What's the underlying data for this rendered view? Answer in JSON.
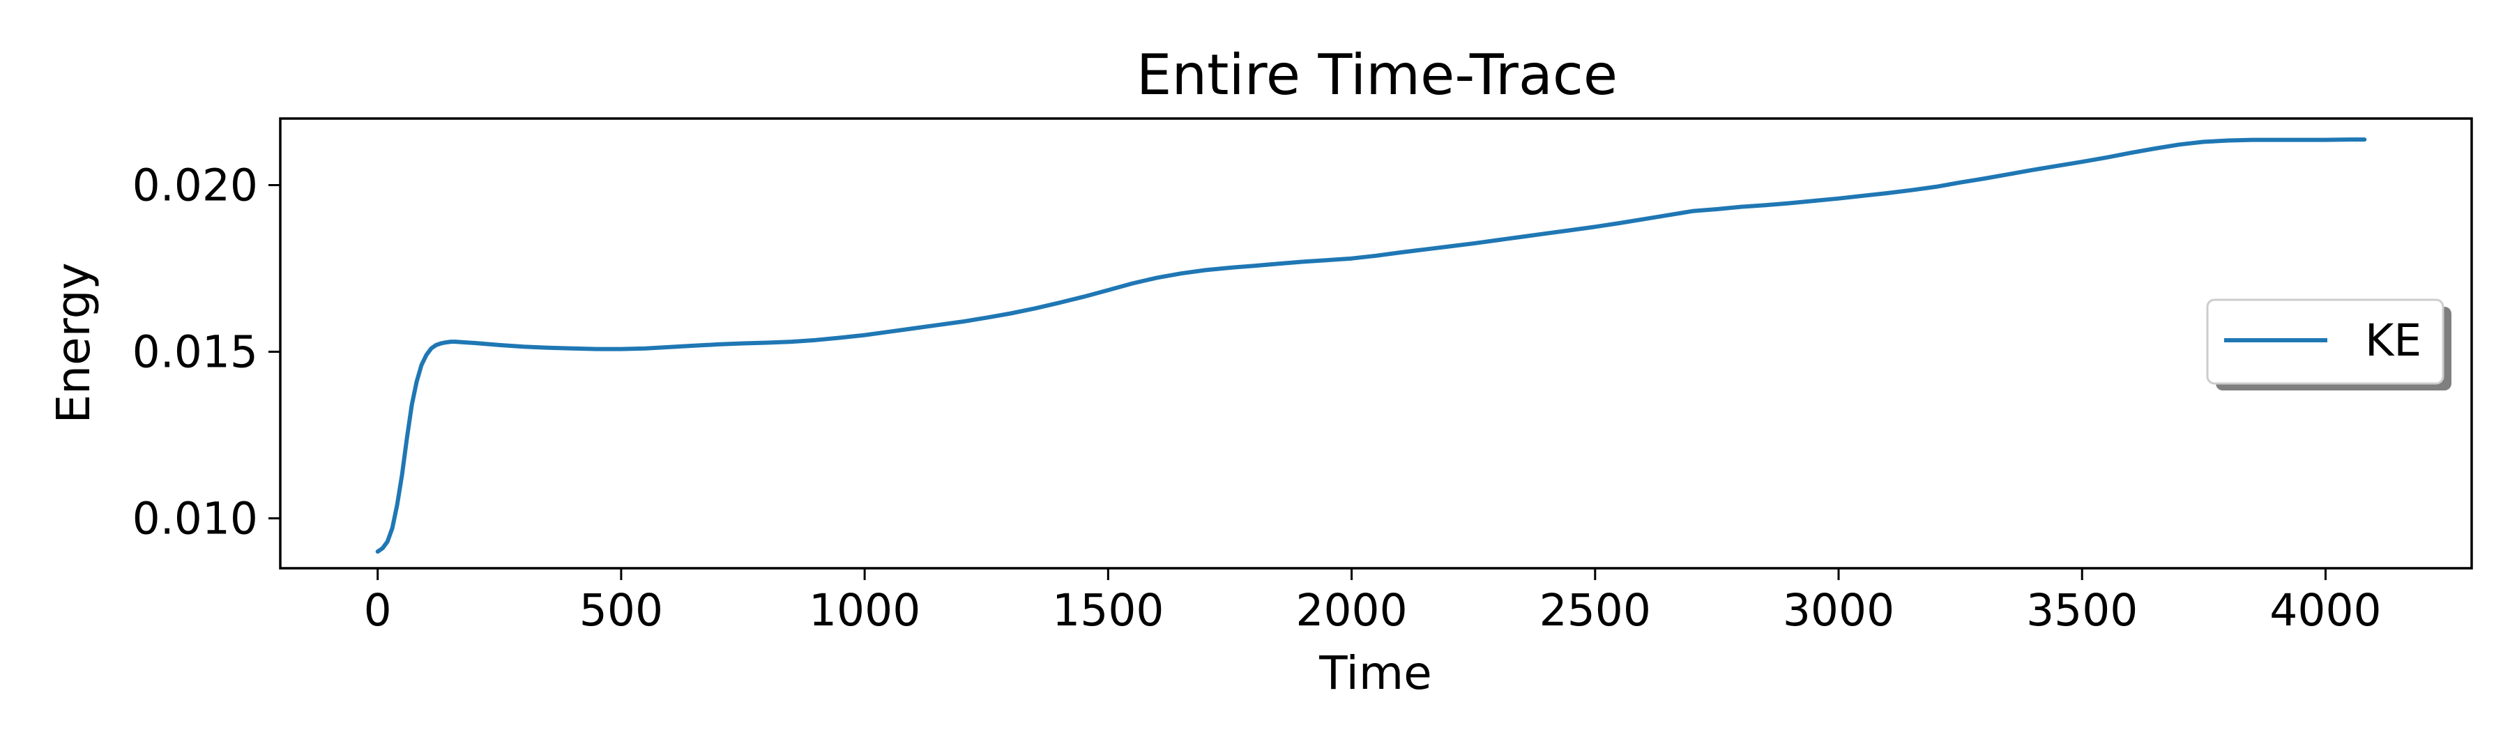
{
  "chart_data": {
    "type": "line",
    "title": "Entire Time-Trace",
    "xlabel": "Time",
    "ylabel": "Energy",
    "xlim": [
      -200,
      4300
    ],
    "ylim": [
      0.0085,
      0.022
    ],
    "xticks": [
      0,
      500,
      1000,
      1500,
      2000,
      2500,
      3000,
      3500,
      4000
    ],
    "xtick_labels": [
      "0",
      "500",
      "1000",
      "1500",
      "2000",
      "2500",
      "3000",
      "3500",
      "4000"
    ],
    "yticks": [
      0.01,
      0.015,
      0.02
    ],
    "ytick_labels": [
      "0.010",
      "0.015",
      "0.020"
    ],
    "grid": false,
    "legend": {
      "placement": "center-right",
      "entries": [
        "KE"
      ]
    },
    "series": [
      {
        "name": "KE",
        "color": "#1f77b4",
        "x": [
          0,
          10,
          20,
          30,
          40,
          50,
          60,
          70,
          80,
          90,
          100,
          110,
          120,
          130,
          140,
          150,
          160,
          180,
          200,
          250,
          300,
          350,
          400,
          450,
          500,
          550,
          600,
          650,
          700,
          750,
          800,
          850,
          900,
          950,
          1000,
          1050,
          1100,
          1150,
          1200,
          1250,
          1300,
          1350,
          1400,
          1450,
          1500,
          1550,
          1600,
          1650,
          1700,
          1750,
          1800,
          1850,
          1900,
          1950,
          2000,
          2050,
          2100,
          2150,
          2200,
          2250,
          2300,
          2350,
          2400,
          2450,
          2500,
          2550,
          2600,
          2650,
          2700,
          2750,
          2800,
          2850,
          2900,
          2950,
          3000,
          3050,
          3100,
          3150,
          3200,
          3250,
          3300,
          3350,
          3400,
          3450,
          3500,
          3550,
          3600,
          3650,
          3700,
          3750,
          3800,
          3850,
          3900,
          3950,
          4000,
          4050,
          4080
        ],
        "y": [
          0.009,
          0.0091,
          0.0093,
          0.0097,
          0.0104,
          0.0113,
          0.0124,
          0.0134,
          0.0141,
          0.0146,
          0.0149,
          0.0151,
          0.0152,
          0.01525,
          0.01528,
          0.0153,
          0.0153,
          0.01528,
          0.01526,
          0.0152,
          0.01515,
          0.01512,
          0.0151,
          0.01508,
          0.01508,
          0.0151,
          0.01514,
          0.01518,
          0.01522,
          0.01525,
          0.01527,
          0.0153,
          0.01535,
          0.01542,
          0.0155,
          0.0156,
          0.0157,
          0.0158,
          0.0159,
          0.01602,
          0.01615,
          0.0163,
          0.01647,
          0.01665,
          0.01685,
          0.01705,
          0.01722,
          0.01735,
          0.01745,
          0.01752,
          0.01758,
          0.01764,
          0.0177,
          0.01775,
          0.0178,
          0.01788,
          0.01798,
          0.01807,
          0.01816,
          0.01825,
          0.01835,
          0.01845,
          0.01855,
          0.01865,
          0.01875,
          0.01886,
          0.01898,
          0.0191,
          0.01922,
          0.01928,
          0.01935,
          0.0194,
          0.01946,
          0.01953,
          0.0196,
          0.01968,
          0.01976,
          0.01985,
          0.01995,
          0.02008,
          0.0202,
          0.02033,
          0.02046,
          0.02058,
          0.0207,
          0.02083,
          0.02097,
          0.0211,
          0.02122,
          0.0213,
          0.02134,
          0.02136,
          0.02136,
          0.02136,
          0.02136,
          0.02137,
          0.02137
        ]
      }
    ]
  }
}
